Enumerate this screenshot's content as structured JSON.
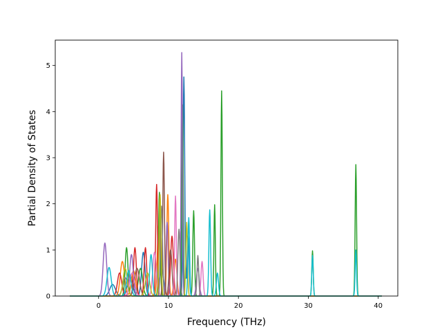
{
  "chart_data": {
    "type": "line",
    "xlabel": "Frequency (THz)",
    "ylabel": "Partial Density of States",
    "xlim": [
      -6.2,
      42.8
    ],
    "ylim": [
      0,
      5.55
    ],
    "xticks": [
      0,
      10,
      20,
      30,
      40
    ],
    "yticks": [
      0,
      1,
      2,
      3,
      4,
      5
    ],
    "grid": false,
    "legend": "none",
    "x_start": -4.1,
    "x_end": 40.5,
    "series": [
      {
        "color": "#1f77b4",
        "peaks": [
          [
            2.0,
            0.25,
            0.4
          ],
          [
            4.5,
            0.45,
            0.35
          ],
          [
            6.4,
            0.95,
            0.25
          ],
          [
            9.0,
            0.6,
            0.3
          ],
          [
            12.2,
            4.75,
            0.12
          ],
          [
            12.8,
            1.3,
            0.15
          ]
        ]
      },
      {
        "color": "#ff7f0e",
        "peaks": [
          [
            3.4,
            0.75,
            0.3
          ],
          [
            5.0,
            0.55,
            0.3
          ],
          [
            8.6,
            1.55,
            0.2
          ],
          [
            9.9,
            2.2,
            0.14
          ],
          [
            11.0,
            0.8,
            0.2
          ]
        ]
      },
      {
        "color": "#2ca02c",
        "peaks": [
          [
            4.0,
            1.05,
            0.2
          ],
          [
            6.0,
            0.6,
            0.3
          ],
          [
            8.7,
            2.25,
            0.13
          ],
          [
            12.0,
            4.15,
            0.1
          ],
          [
            13.6,
            1.85,
            0.12
          ],
          [
            16.6,
            1.98,
            0.1
          ],
          [
            17.6,
            4.45,
            0.1
          ],
          [
            30.6,
            0.98,
            0.1
          ],
          [
            36.8,
            2.85,
            0.1
          ]
        ]
      },
      {
        "color": "#d62728",
        "peaks": [
          [
            3.0,
            0.5,
            0.3
          ],
          [
            5.2,
            1.05,
            0.2
          ],
          [
            6.7,
            1.05,
            0.18
          ],
          [
            8.3,
            2.42,
            0.13
          ],
          [
            10.5,
            1.3,
            0.2
          ]
        ]
      },
      {
        "color": "#9467bd",
        "peaks": [
          [
            0.9,
            1.15,
            0.25
          ],
          [
            4.7,
            0.9,
            0.25
          ],
          [
            9.8,
            1.6,
            0.15
          ],
          [
            11.9,
            5.28,
            0.1
          ],
          [
            14.2,
            0.6,
            0.2
          ]
        ]
      },
      {
        "color": "#8c564b",
        "peaks": [
          [
            5.5,
            0.6,
            0.35
          ],
          [
            9.3,
            3.12,
            0.12
          ],
          [
            10.3,
            1.0,
            0.2
          ]
        ]
      },
      {
        "color": "#e377c2",
        "peaks": [
          [
            4.8,
            0.5,
            0.35
          ],
          [
            8.0,
            0.95,
            0.25
          ],
          [
            11.0,
            2.17,
            0.12
          ],
          [
            14.8,
            0.75,
            0.15
          ]
        ]
      },
      {
        "color": "#7f7f7f",
        "peaks": [
          [
            3.8,
            0.4,
            0.35
          ],
          [
            9.0,
            1.95,
            0.15
          ],
          [
            11.5,
            1.45,
            0.15
          ],
          [
            14.2,
            0.88,
            0.12
          ]
        ]
      },
      {
        "color": "#bcbd22",
        "peaks": [
          [
            3.8,
            0.6,
            0.3
          ],
          [
            7.0,
            0.5,
            0.3
          ],
          [
            8.8,
            2.2,
            0.14
          ],
          [
            12.6,
            1.6,
            0.12
          ]
        ]
      },
      {
        "color": "#17becf",
        "peaks": [
          [
            1.5,
            0.62,
            0.3
          ],
          [
            4.3,
            0.55,
            0.3
          ],
          [
            7.5,
            0.9,
            0.2
          ],
          [
            12.9,
            1.7,
            0.12
          ],
          [
            15.9,
            1.87,
            0.12
          ],
          [
            17.0,
            0.5,
            0.15
          ],
          [
            30.6,
            0.88,
            0.1
          ],
          [
            36.8,
            1.0,
            0.1
          ]
        ]
      }
    ]
  }
}
